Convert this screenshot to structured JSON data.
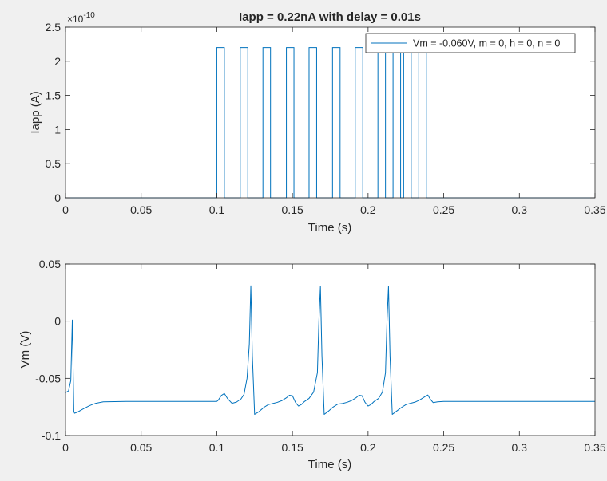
{
  "colors": {
    "figure_bg": "#f0f0f0",
    "axes_bg": "#ffffff",
    "axis_line": "#262626",
    "series": "#0072bd"
  },
  "chart_data": [
    {
      "type": "line",
      "title": "Iapp = 0.22nA with delay = 0.01s",
      "xlabel": "Time (s)",
      "ylabel": "Iapp (A)",
      "y_exponent_base": "×10",
      "y_exponent_power": "-10",
      "xlim": [
        0,
        0.35
      ],
      "ylim": [
        0,
        2.5
      ],
      "xticks": [
        0,
        0.05,
        0.1,
        0.15,
        0.2,
        0.25,
        0.3,
        0.35
      ],
      "xtick_labels": [
        "0",
        "0.05",
        "0.1",
        "0.15",
        "0.2",
        "0.25",
        "0.3",
        "0.35"
      ],
      "yticks": [
        0,
        0.5,
        1,
        1.5,
        2,
        2.5
      ],
      "ytick_labels": [
        "0",
        "0.5",
        "1",
        "1.5",
        "2",
        "2.5"
      ],
      "grid": false,
      "legend": {
        "position": "top-right",
        "entries": [
          "Vm = -0.060V, m = 0, h = 0, n = 0"
        ]
      },
      "series": [
        {
          "name": "Vm = -0.060V, m = 0, h = 0, n = 0",
          "pulse_height": 2.2,
          "pulses": [
            [
              0.1,
              0.105
            ],
            [
              0.1155,
              0.1205
            ],
            [
              0.1305,
              0.1355
            ],
            [
              0.146,
              0.151
            ],
            [
              0.161,
              0.166
            ],
            [
              0.1765,
              0.1815
            ],
            [
              0.1915,
              0.1965
            ],
            [
              0.2065,
              0.2115
            ],
            [
              0.2165,
              0.2215
            ],
            [
              0.2235,
              0.2285
            ],
            [
              0.2335,
              0.2385
            ]
          ],
          "x_end": 0.35
        }
      ]
    },
    {
      "type": "line",
      "title": "",
      "xlabel": "Time (s)",
      "ylabel": "Vm (V)",
      "xlim": [
        0,
        0.35
      ],
      "ylim": [
        -0.1,
        0.05
      ],
      "xticks": [
        0,
        0.05,
        0.1,
        0.15,
        0.2,
        0.25,
        0.3,
        0.35
      ],
      "xtick_labels": [
        "0",
        "0.05",
        "0.1",
        "0.15",
        "0.2",
        "0.25",
        "0.3",
        "0.35"
      ],
      "yticks": [
        -0.1,
        -0.05,
        0,
        0.05
      ],
      "ytick_labels": [
        "-0.1",
        "-0.05",
        "0",
        "0.05"
      ],
      "grid": false,
      "series": [
        {
          "x": [
            0,
            0.002,
            0.0035,
            0.0045,
            0.0055,
            0.006,
            0.008,
            0.012,
            0.016,
            0.02,
            0.025,
            0.04,
            0.06,
            0.08,
            0.1,
            0.101,
            0.103,
            0.105,
            0.107,
            0.11,
            0.113,
            0.116,
            0.118,
            0.12,
            0.1215,
            0.1225,
            0.1235,
            0.125,
            0.128,
            0.131,
            0.134,
            0.137,
            0.14,
            0.143,
            0.146,
            0.148,
            0.15,
            0.152,
            0.154,
            0.156,
            0.158,
            0.161,
            0.164,
            0.1665,
            0.1675,
            0.1685,
            0.1695,
            0.171,
            0.174,
            0.177,
            0.18,
            0.183,
            0.186,
            0.189,
            0.192,
            0.194,
            0.196,
            0.198,
            0.2,
            0.202,
            0.204,
            0.207,
            0.2095,
            0.2115,
            0.2125,
            0.2135,
            0.2145,
            0.216,
            0.219,
            0.222,
            0.225,
            0.228,
            0.231,
            0.234,
            0.237,
            0.2395,
            0.241,
            0.243,
            0.246,
            0.25,
            0.26,
            0.3,
            0.35
          ],
          "y": [
            -0.0625,
            -0.061,
            -0.052,
            0.001,
            -0.079,
            -0.0805,
            -0.0795,
            -0.0765,
            -0.0738,
            -0.0718,
            -0.0705,
            -0.0702,
            -0.0702,
            -0.0702,
            -0.0702,
            -0.069,
            -0.065,
            -0.0632,
            -0.0675,
            -0.0718,
            -0.0708,
            -0.068,
            -0.064,
            -0.05,
            -0.02,
            0.031,
            -0.03,
            -0.0815,
            -0.079,
            -0.0755,
            -0.073,
            -0.072,
            -0.071,
            -0.0695,
            -0.067,
            -0.0648,
            -0.0652,
            -0.071,
            -0.0742,
            -0.0728,
            -0.0702,
            -0.0675,
            -0.062,
            -0.045,
            0.0,
            0.0305,
            -0.03,
            -0.0815,
            -0.0785,
            -0.075,
            -0.0725,
            -0.072,
            -0.071,
            -0.0695,
            -0.067,
            -0.0648,
            -0.0652,
            -0.071,
            -0.0742,
            -0.0728,
            -0.0702,
            -0.0675,
            -0.062,
            -0.045,
            0.0,
            0.0305,
            -0.03,
            -0.0815,
            -0.0785,
            -0.0755,
            -0.073,
            -0.0718,
            -0.0708,
            -0.069,
            -0.0665,
            -0.0645,
            -0.068,
            -0.0712,
            -0.0705,
            -0.0702,
            -0.0702,
            -0.0702,
            -0.0702
          ]
        }
      ]
    }
  ]
}
